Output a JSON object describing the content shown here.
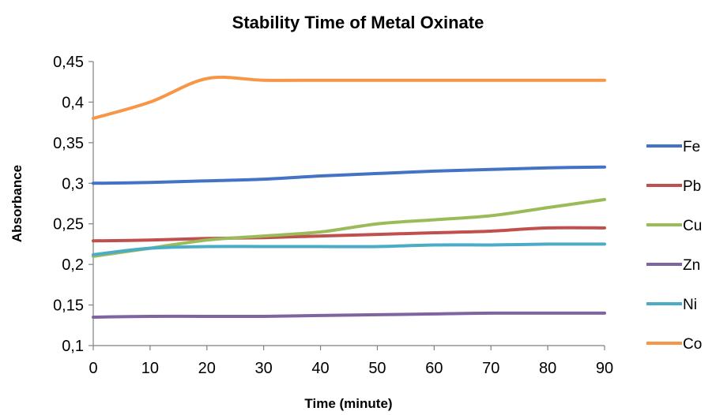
{
  "chart_data": {
    "type": "line",
    "title": "Stability Time of Metal Oxinate",
    "xlabel": "Time (minute)",
    "ylabel": "Absorbance",
    "x": [
      0,
      10,
      20,
      30,
      40,
      50,
      60,
      70,
      80,
      90
    ],
    "xlim": [
      0,
      90
    ],
    "ylim": [
      0.1,
      0.45
    ],
    "x_ticks": [
      "0",
      "10",
      "20",
      "30",
      "40",
      "50",
      "60",
      "70",
      "80",
      "90"
    ],
    "y_ticks": [
      "0,1",
      "0,15",
      "0,2",
      "0,25",
      "0,3",
      "0,35",
      "0,4",
      "0,45"
    ],
    "grid": false,
    "legend_position": "right",
    "series": [
      {
        "name": "Fe",
        "color": "#4472C4",
        "values": [
          0.3,
          0.301,
          0.303,
          0.305,
          0.309,
          0.312,
          0.315,
          0.317,
          0.319,
          0.32
        ]
      },
      {
        "name": "Pb",
        "color": "#C0504D",
        "values": [
          0.229,
          0.23,
          0.232,
          0.233,
          0.235,
          0.237,
          0.239,
          0.241,
          0.245,
          0.245
        ]
      },
      {
        "name": "Cu",
        "color": "#9BBB59",
        "values": [
          0.21,
          0.22,
          0.23,
          0.235,
          0.24,
          0.25,
          0.255,
          0.26,
          0.27,
          0.28
        ]
      },
      {
        "name": "Zn",
        "color": "#8064A2",
        "values": [
          0.135,
          0.136,
          0.136,
          0.136,
          0.137,
          0.138,
          0.139,
          0.14,
          0.14,
          0.14
        ]
      },
      {
        "name": "Ni",
        "color": "#4BACC6",
        "values": [
          0.212,
          0.22,
          0.222,
          0.222,
          0.222,
          0.222,
          0.224,
          0.224,
          0.225,
          0.225
        ]
      },
      {
        "name": "Co",
        "color": "#F79646",
        "values": [
          0.38,
          0.4,
          0.429,
          0.427,
          0.427,
          0.427,
          0.427,
          0.427,
          0.427,
          0.427
        ]
      }
    ]
  }
}
